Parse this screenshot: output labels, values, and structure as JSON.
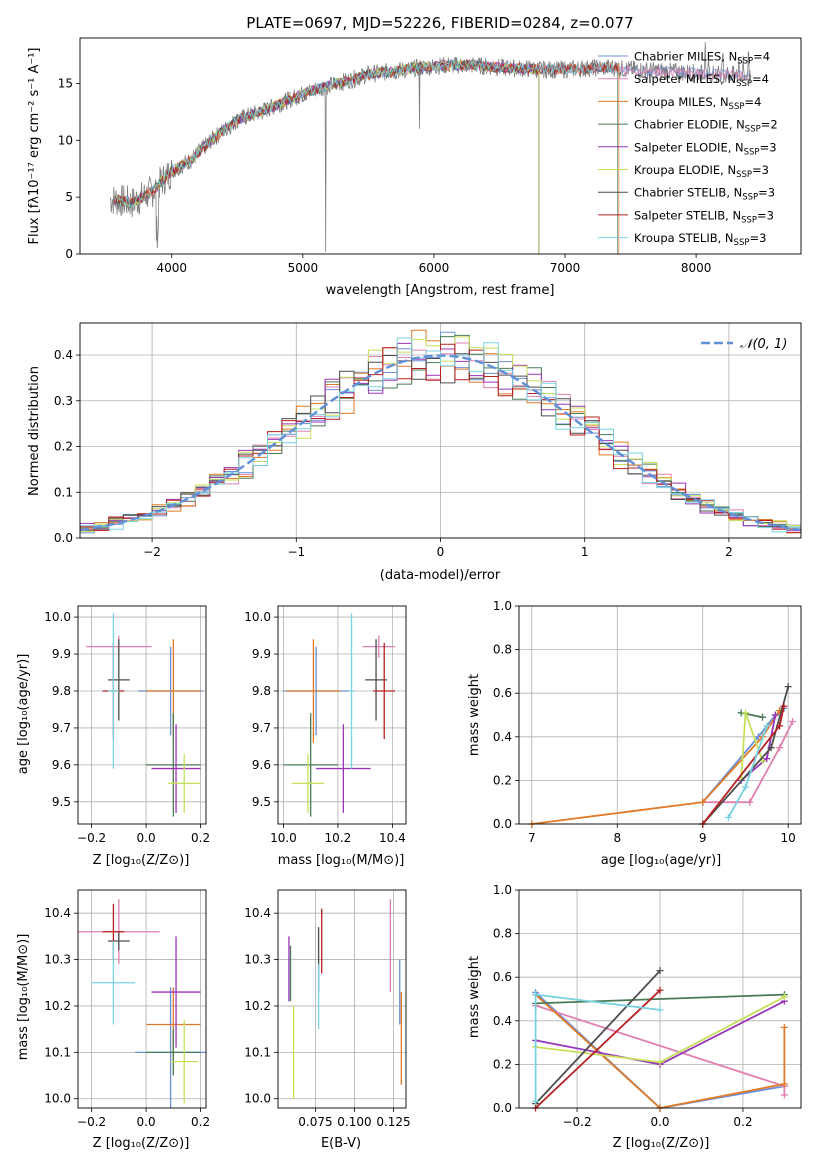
{
  "colors": {
    "Chabrier MILES": "#6c8fd6",
    "Salpeter MILES": "#e080b0",
    "Kroupa MILES": "#e07a28",
    "Chabrier ELODIE": "#4a7a55",
    "Salpeter ELODIE": "#9a35b8",
    "Kroupa ELODIE": "#c6e05a",
    "Chabrier STELIB": "#4d4d4d",
    "Salpeter STELIB": "#b82020",
    "Kroupa STELIB": "#78d2e0",
    "data_spectrum": "#808080",
    "gaussian": "#6090d8"
  },
  "panel1": {
    "title": "PLATE=0697, MJD=52226, FIBERID=0284, z=0.077",
    "xlabel": "wavelength [Angstrom, rest frame]",
    "ylabel": "Flux [fλ10⁻¹⁷ erg cm⁻² s⁻¹ A⁻¹]",
    "xticks": [
      "4000",
      "5000",
      "6000",
      "7000",
      "8000"
    ],
    "yticks": [
      "0",
      "5",
      "10",
      "15"
    ],
    "legend": [
      {
        "name": "Chabrier MILES",
        "nssp": "4"
      },
      {
        "name": "Salpeter MILES",
        "nssp": "4"
      },
      {
        "name": "Kroupa MILES",
        "nssp": "4"
      },
      {
        "name": "Chabrier ELODIE",
        "nssp": "2"
      },
      {
        "name": "Salpeter ELODIE",
        "nssp": "3"
      },
      {
        "name": "Kroupa ELODIE",
        "nssp": "3"
      },
      {
        "name": "Chabrier STELIB",
        "nssp": "3"
      },
      {
        "name": "Salpeter STELIB",
        "nssp": "3"
      },
      {
        "name": "Kroupa STELIB",
        "nssp": "3"
      }
    ]
  },
  "panel2": {
    "xlabel": "(data-model)/error",
    "ylabel": "Normed distribution",
    "xticks": [
      "−2",
      "−1",
      "0",
      "1",
      "2"
    ],
    "yticks": [
      "0.0",
      "0.1",
      "0.2",
      "0.3",
      "0.4"
    ],
    "legend_label": "𝒩(0, 1)"
  },
  "panel3": {
    "xlabel": "Z [log₁₀(Z/Z⊙)]",
    "ylabel": "age  [log₁₀(age/yr)]",
    "xticks": [
      "−0.2",
      "0.0",
      "0.2"
    ],
    "yticks": [
      "9.5",
      "9.6",
      "9.7",
      "9.8",
      "9.9",
      "10.0"
    ]
  },
  "panel4": {
    "xlabel": "mass [log₁₀(M/M⊙)]",
    "xticks": [
      "10.0",
      "10.2",
      "10.4"
    ],
    "yticks": [
      "9.5",
      "9.6",
      "9.7",
      "9.8",
      "9.9",
      "10.0"
    ]
  },
  "panel5": {
    "xlabel": "age  [log₁₀(age/yr)]",
    "ylabel": "mass weight",
    "xticks": [
      "7",
      "8",
      "9",
      "10"
    ],
    "yticks": [
      "0.0",
      "0.2",
      "0.4",
      "0.6",
      "0.8",
      "1.0"
    ]
  },
  "panel6": {
    "xlabel": "Z [log₁₀(Z/Z⊙)]",
    "ylabel": "mass [log₁₀(M/M⊙)]",
    "xticks": [
      "−0.2",
      "0.0",
      "0.2"
    ],
    "yticks": [
      "10.0",
      "10.1",
      "10.2",
      "10.3",
      "10.4"
    ]
  },
  "panel7": {
    "xlabel": "E(B-V)",
    "xticks": [
      "0.075",
      "0.100",
      "0.125"
    ],
    "yticks": [
      "10.0",
      "10.1",
      "10.2",
      "10.3",
      "10.4"
    ]
  },
  "panel8": {
    "xlabel": "Z [log₁₀(Z/Z⊙)]",
    "ylabel": "mass weight",
    "xticks": [
      "−0.2",
      "0.0",
      "0.2"
    ],
    "yticks": [
      "0.0",
      "0.2",
      "0.4",
      "0.6",
      "0.8",
      "1.0"
    ]
  },
  "chart_data": [
    {
      "type": "line",
      "title": "PLATE=0697, MJD=52226, FIBERID=0284, z=0.077",
      "xlabel": "wavelength [Angstrom, rest frame]",
      "ylabel": "Flux",
      "xlim": [
        3300,
        8800
      ],
      "ylim": [
        0,
        19
      ],
      "series_shape": {
        "x": [
          3550,
          3700,
          3850,
          4000,
          4150,
          4300,
          4500,
          4700,
          4900,
          5100,
          5300,
          5500,
          5700,
          5900,
          6100,
          6300,
          6500,
          6700,
          6900,
          7100,
          7300,
          7400
        ],
        "y": [
          4.8,
          4.5,
          5.5,
          7.3,
          8.3,
          10.0,
          11.8,
          12.6,
          13.6,
          14.5,
          15.1,
          15.8,
          16.1,
          16.4,
          16.6,
          16.6,
          16.4,
          16.3,
          16.2,
          16.3,
          16.4,
          16.4
        ]
      },
      "series": [
        {
          "name": "Chabrier MILES",
          "end_x": 8400
        },
        {
          "name": "Salpeter MILES",
          "end_x": 8400
        },
        {
          "name": "Kroupa MILES",
          "end_x": 7410
        },
        {
          "name": "Chabrier ELODIE",
          "end_x": 6800
        },
        {
          "name": "Salpeter ELODIE",
          "end_x": 6800
        },
        {
          "name": "Kroupa ELODIE",
          "end_x": 6800
        },
        {
          "name": "Chabrier STELIB",
          "end_x": 7400
        },
        {
          "name": "Salpeter STELIB",
          "end_x": 7400
        },
        {
          "name": "Kroupa STELIB",
          "end_x": 7400
        }
      ]
    },
    {
      "type": "area",
      "xlabel": "(data-model)/error",
      "ylabel": "Normed distribution",
      "xlim": [
        -2.5,
        2.5
      ],
      "ylim": [
        0,
        0.47
      ],
      "bin_width": 0.1,
      "gaussian": {
        "mean": 0,
        "sigma": 1,
        "label": "𝒩(0, 1)"
      }
    },
    {
      "type": "scatter",
      "xlabel": "Z",
      "ylabel": "age",
      "xlim": [
        -0.25,
        0.22
      ],
      "ylim": [
        9.44,
        10.03
      ],
      "points": [
        {
          "name": "Chabrier MILES",
          "x": 0.09,
          "y": 9.8,
          "xerr": 0.12,
          "yerr": 0.12
        },
        {
          "name": "Salpeter MILES",
          "x": -0.1,
          "y": 9.92,
          "xerr": 0.12,
          "yerr": 0.03
        },
        {
          "name": "Kroupa MILES",
          "x": 0.1,
          "y": 9.8,
          "xerr": 0.1,
          "yerr": 0.14
        },
        {
          "name": "Chabrier ELODIE",
          "x": 0.1,
          "y": 9.6,
          "xerr": 0.1,
          "yerr": 0.14
        },
        {
          "name": "Salpeter ELODIE",
          "x": 0.11,
          "y": 9.59,
          "xerr": 0.09,
          "yerr": 0.12
        },
        {
          "name": "Kroupa ELODIE",
          "x": 0.14,
          "y": 9.55,
          "xerr": 0.06,
          "yerr": 0.08
        },
        {
          "name": "Chabrier STELIB",
          "x": -0.1,
          "y": 9.83,
          "xerr": 0.04,
          "yerr": 0.11
        },
        {
          "name": "Salpeter STELIB",
          "x": -0.12,
          "y": 9.8,
          "xerr": 0.04,
          "yerr": 0.13
        },
        {
          "name": "Kroupa STELIB",
          "x": -0.12,
          "y": 9.8,
          "xerr": 0.02,
          "yerr": 0.21
        }
      ]
    },
    {
      "type": "scatter",
      "xlabel": "mass",
      "ylabel": "age",
      "xlim": [
        9.98,
        10.45
      ],
      "ylim": [
        9.44,
        10.03
      ],
      "points": [
        {
          "name": "Chabrier MILES",
          "x": 10.12,
          "y": 9.8,
          "xerr": 0.12,
          "yerr": 0.12
        },
        {
          "name": "Salpeter MILES",
          "x": 10.35,
          "y": 9.92,
          "xerr": 0.06,
          "yerr": 0.03
        },
        {
          "name": "Kroupa MILES",
          "x": 10.11,
          "y": 9.8,
          "xerr": 0.1,
          "yerr": 0.14
        },
        {
          "name": "Chabrier ELODIE",
          "x": 10.1,
          "y": 9.6,
          "xerr": 0.1,
          "yerr": 0.14
        },
        {
          "name": "Salpeter ELODIE",
          "x": 10.22,
          "y": 9.59,
          "xerr": 0.1,
          "yerr": 0.12
        },
        {
          "name": "Kroupa ELODIE",
          "x": 10.09,
          "y": 9.55,
          "xerr": 0.06,
          "yerr": 0.08
        },
        {
          "name": "Chabrier STELIB",
          "x": 10.34,
          "y": 9.83,
          "xerr": 0.04,
          "yerr": 0.11
        },
        {
          "name": "Salpeter STELIB",
          "x": 10.37,
          "y": 9.8,
          "xerr": 0.04,
          "yerr": 0.13
        },
        {
          "name": "Kroupa STELIB",
          "x": 10.25,
          "y": 9.8,
          "xerr": 0.01,
          "yerr": 0.21
        }
      ]
    },
    {
      "type": "line",
      "xlabel": "age",
      "ylabel": "mass weight",
      "xlim": [
        6.85,
        10.15
      ],
      "ylim": [
        0,
        1
      ],
      "series": [
        {
          "name": "Chabrier MILES",
          "x": [
            9.0,
            9.65,
            9.85,
            9.95
          ],
          "y": [
            0.1,
            0.4,
            0.5,
            0.53
          ]
        },
        {
          "name": "Salpeter MILES",
          "x": [
            9.0,
            9.55,
            9.9,
            10.05
          ],
          "y": [
            0.1,
            0.1,
            0.35,
            0.47
          ]
        },
        {
          "name": "Kroupa MILES",
          "x": [
            7.0,
            9.0,
            9.7,
            9.9
          ],
          "y": [
            0.0,
            0.1,
            0.4,
            0.52
          ]
        },
        {
          "name": "Chabrier ELODIE",
          "x": [
            9.45,
            9.7
          ],
          "y": [
            0.51,
            0.49
          ]
        },
        {
          "name": "Salpeter ELODIE",
          "x": [
            9.45,
            9.75,
            9.85
          ],
          "y": [
            0.2,
            0.3,
            0.5
          ]
        },
        {
          "name": "Kroupa ELODIE",
          "x": [
            9.45,
            9.5,
            9.7
          ],
          "y": [
            0.21,
            0.51,
            0.29
          ]
        },
        {
          "name": "Chabrier STELIB",
          "x": [
            9.0,
            9.8,
            10.0
          ],
          "y": [
            0.0,
            0.35,
            0.63
          ]
        },
        {
          "name": "Salpeter STELIB",
          "x": [
            9.0,
            9.9,
            9.95
          ],
          "y": [
            0.0,
            0.45,
            0.54
          ]
        },
        {
          "name": "Kroupa STELIB",
          "x": [
            9.3,
            9.5,
            9.75
          ],
          "y": [
            0.03,
            0.17,
            0.45
          ]
        }
      ]
    },
    {
      "type": "scatter",
      "xlabel": "Z",
      "ylabel": "mass",
      "xlim": [
        -0.25,
        0.22
      ],
      "ylim": [
        9.98,
        10.45
      ],
      "points": [
        {
          "name": "Chabrier MILES",
          "x": 0.09,
          "y": 10.1,
          "xerr": 0.13,
          "yerr": 0.14
        },
        {
          "name": "Salpeter MILES",
          "x": -0.1,
          "y": 10.36,
          "xerr": 0.15,
          "yerr": 0.07
        },
        {
          "name": "Kroupa MILES",
          "x": 0.1,
          "y": 10.16,
          "xerr": 0.1,
          "yerr": 0.08
        },
        {
          "name": "Chabrier ELODIE",
          "x": 0.1,
          "y": 10.1,
          "xerr": 0.1,
          "yerr": 0.05
        },
        {
          "name": "Salpeter ELODIE",
          "x": 0.11,
          "y": 10.23,
          "xerr": 0.09,
          "yerr": 0.12
        },
        {
          "name": "Kroupa ELODIE",
          "x": 0.14,
          "y": 10.08,
          "xerr": 0.05,
          "yerr": 0.09
        },
        {
          "name": "Chabrier STELIB",
          "x": -0.1,
          "y": 10.34,
          "xerr": 0.04,
          "yerr": 0.02
        },
        {
          "name": "Salpeter STELIB",
          "x": -0.12,
          "y": 10.36,
          "xerr": 0.04,
          "yerr": 0.06
        },
        {
          "name": "Kroupa STELIB",
          "x": -0.12,
          "y": 10.25,
          "xerr": 0.08,
          "yerr": 0.09
        }
      ]
    },
    {
      "type": "scatter",
      "xlabel": "E(B-V)",
      "ylabel": "mass",
      "xlim": [
        0.051,
        0.133
      ],
      "ylim": [
        9.98,
        10.45
      ],
      "points": [
        {
          "name": "Chabrier MILES",
          "x": 0.129,
          "y": 10.23,
          "yerr": 0.07
        },
        {
          "name": "Salpeter MILES",
          "x": 0.123,
          "y": 10.33,
          "yerr": 0.1
        },
        {
          "name": "Kroupa MILES",
          "x": 0.13,
          "y": 10.13,
          "yerr": 0.1
        },
        {
          "name": "Chabrier ELODIE",
          "x": 0.059,
          "y": 10.27,
          "yerr": 0.06
        },
        {
          "name": "Salpeter ELODIE",
          "x": 0.058,
          "y": 10.28,
          "yerr": 0.07
        },
        {
          "name": "Kroupa ELODIE",
          "x": 0.061,
          "y": 10.1,
          "yerr": 0.1
        },
        {
          "name": "Chabrier STELIB",
          "x": 0.077,
          "y": 10.3,
          "yerr": 0.07
        },
        {
          "name": "Salpeter STELIB",
          "x": 0.079,
          "y": 10.34,
          "yerr": 0.07
        },
        {
          "name": "Kroupa STELIB",
          "x": 0.077,
          "y": 10.22,
          "yerr": 0.07
        }
      ]
    },
    {
      "type": "line",
      "xlabel": "Z",
      "ylabel": "mass weight",
      "xlim": [
        -0.34,
        0.34
      ],
      "ylim": [
        0,
        1
      ],
      "series": [
        {
          "name": "Chabrier MILES",
          "x": [
            -0.3,
            0.0,
            0.3
          ],
          "y": [
            0.53,
            0.0,
            0.1
          ]
        },
        {
          "name": "Salpeter MILES",
          "x": [
            -0.3,
            0.3,
            0.3
          ],
          "y": [
            0.47,
            0.1,
            0.06
          ]
        },
        {
          "name": "Kroupa MILES",
          "x": [
            -0.3,
            0.0,
            0.3,
            0.3
          ],
          "y": [
            0.52,
            0.0,
            0.11,
            0.37
          ]
        },
        {
          "name": "Chabrier ELODIE",
          "x": [
            -0.3,
            0.3
          ],
          "y": [
            0.48,
            0.52
          ]
        },
        {
          "name": "Salpeter ELODIE",
          "x": [
            -0.3,
            0.0,
            0.3
          ],
          "y": [
            0.31,
            0.2,
            0.49
          ]
        },
        {
          "name": "Kroupa ELODIE",
          "x": [
            -0.3,
            0.0,
            0.3
          ],
          "y": [
            0.28,
            0.21,
            0.51
          ]
        },
        {
          "name": "Chabrier STELIB",
          "x": [
            -0.3,
            0.0
          ],
          "y": [
            0.02,
            0.63
          ]
        },
        {
          "name": "Salpeter STELIB",
          "x": [
            -0.3,
            0.0
          ],
          "y": [
            0.0,
            0.54
          ]
        },
        {
          "name": "Kroupa STELIB",
          "x": [
            -0.3,
            -0.3,
            0.0
          ],
          "y": [
            0.03,
            0.52,
            0.45
          ]
        }
      ]
    }
  ]
}
